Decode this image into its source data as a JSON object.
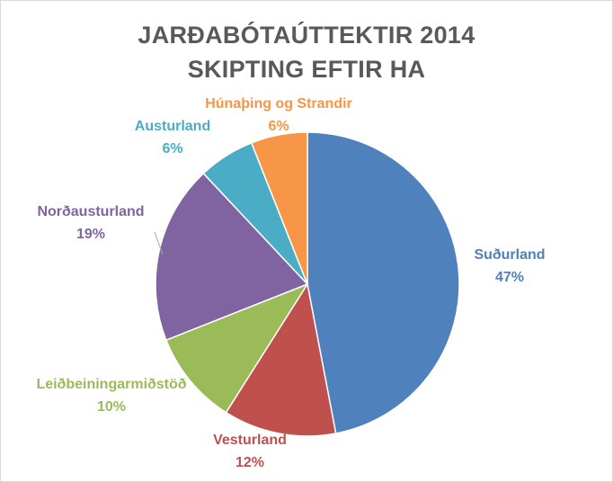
{
  "chart_data": {
    "type": "pie",
    "title_line1": "JARÐABÓTAÚTTEKTIR 2014",
    "title_line2": "SKIPTING EFTIR HA",
    "slices": [
      {
        "label": "Suðurland",
        "pct_label": "47%",
        "value": 47,
        "color": "#4F81BD"
      },
      {
        "label": "Vesturland",
        "pct_label": "12%",
        "value": 12,
        "color": "#C0504D"
      },
      {
        "label": "Leiðbeiningarmiðstöð",
        "pct_label": "10%",
        "value": 10,
        "color": "#9BBB59"
      },
      {
        "label": "Norðausturland",
        "pct_label": "19%",
        "value": 19,
        "color": "#8064A2"
      },
      {
        "label": "Austurland",
        "pct_label": "6%",
        "value": 6,
        "color": "#4BACC6"
      },
      {
        "label": "Húnaþing og Strandir",
        "pct_label": "6%",
        "value": 6,
        "color": "#F79646"
      }
    ],
    "legend": "none",
    "data_labels": "outside"
  }
}
